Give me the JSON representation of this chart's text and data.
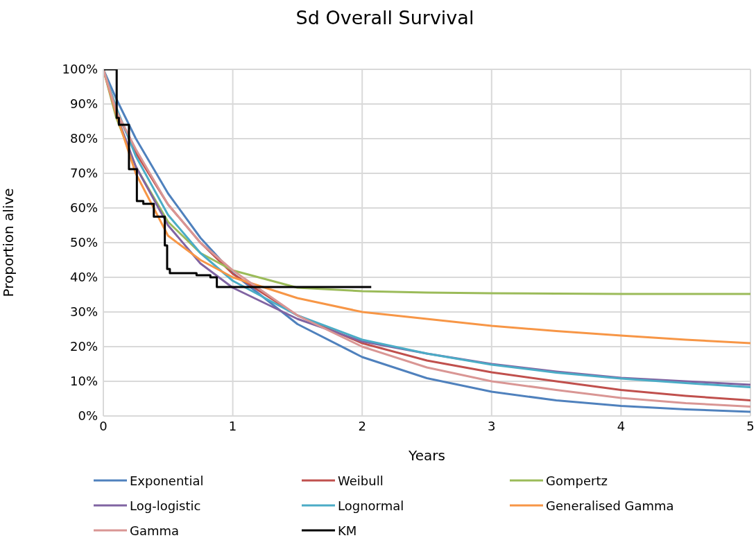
{
  "chart_data": {
    "type": "line",
    "title": "Sd Overall Survival",
    "xlabel": "Years",
    "ylabel": "Proportion alive",
    "x": [
      0,
      0.1,
      0.25,
      0.5,
      0.75,
      1,
      1.5,
      2,
      2.5,
      3,
      3.5,
      4,
      4.5,
      5
    ],
    "xlim": [
      0,
      5
    ],
    "xticks": [
      0,
      1,
      2,
      3,
      4,
      5
    ],
    "ylim": [
      0,
      100
    ],
    "yticks": [
      {
        "value": 0,
        "label": "0%"
      },
      {
        "value": 10,
        "label": "10%"
      },
      {
        "value": 20,
        "label": "20%"
      },
      {
        "value": 30,
        "label": "30%"
      },
      {
        "value": 40,
        "label": "40%"
      },
      {
        "value": 50,
        "label": "50%"
      },
      {
        "value": 60,
        "label": "60%"
      },
      {
        "value": 70,
        "label": "70%"
      },
      {
        "value": 80,
        "label": "80%"
      },
      {
        "value": 90,
        "label": "90%"
      },
      {
        "value": 100,
        "label": "100%"
      }
    ],
    "grid": true,
    "legend": "bottom",
    "marker": "none",
    "line_style": "solid",
    "series": [
      {
        "name": "Exponential",
        "color": "#4f81bd",
        "values": [
          100,
          91.5,
          80.1,
          64.2,
          51.4,
          41.2,
          26.5,
          17.0,
          10.9,
          7.0,
          4.5,
          2.9,
          1.9,
          1.2
        ]
      },
      {
        "name": "Weibull",
        "color": "#c0504d",
        "values": [
          100,
          88,
          76,
          61,
          50,
          41,
          29,
          21,
          16,
          12.6,
          10,
          7.5,
          5.8,
          4.5
        ]
      },
      {
        "name": "Gompertz",
        "color": "#9bbb59",
        "values": [
          100,
          86,
          72,
          56,
          47,
          42,
          37,
          36,
          35.6,
          35.4,
          35.3,
          35.2,
          35.2,
          35.2
        ]
      },
      {
        "name": "Log-logistic",
        "color": "#8064a2",
        "values": [
          100,
          87,
          72,
          55,
          44,
          37,
          28,
          21.5,
          18,
          15,
          12.8,
          11,
          10,
          9
        ]
      },
      {
        "name": "Lognormal",
        "color": "#4bacc6",
        "values": [
          100,
          89,
          75,
          58,
          47,
          39,
          29,
          22,
          18,
          14.8,
          12.5,
          10.8,
          9.5,
          8.3
        ]
      },
      {
        "name": "Generalised Gamma",
        "color": "#f79646",
        "values": [
          100,
          87,
          70,
          52,
          45,
          40,
          34,
          30,
          28,
          26,
          24.5,
          23.2,
          22,
          21
        ]
      },
      {
        "name": "Gamma",
        "color": "#d99694",
        "values": [
          100,
          88,
          77,
          61,
          50,
          42,
          29,
          20,
          14,
          10,
          7.5,
          5.2,
          3.7,
          2.7
        ]
      },
      {
        "name": "KM",
        "type": "step",
        "color": "#000000",
        "x": [
          0,
          0.103,
          0.12,
          0.198,
          0.259,
          0.309,
          0.39,
          0.475,
          0.493,
          0.514,
          0.72,
          0.827,
          0.877,
          2.07
        ],
        "values": [
          100,
          86,
          84,
          71.2,
          62,
          61.2,
          57.5,
          49.2,
          42.4,
          41.2,
          40.6,
          40,
          37.2,
          37.2
        ]
      }
    ]
  }
}
